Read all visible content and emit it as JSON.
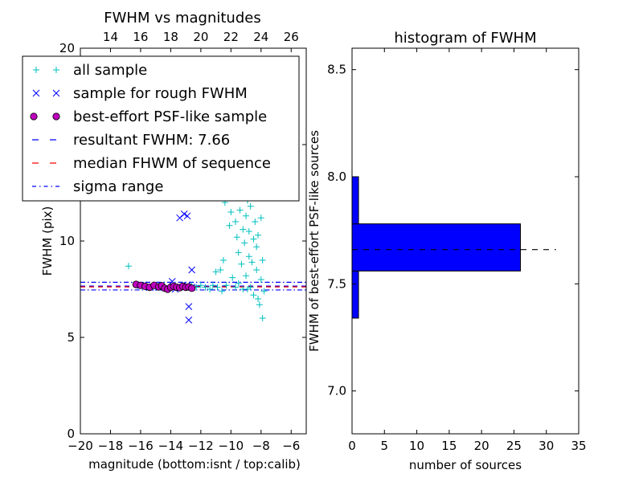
{
  "chart_data": [
    {
      "type": "scatter",
      "title": "FWHM vs magnitudes",
      "xlabel": "magnitude (bottom:isnt / top:calib)",
      "ylabel": "FWHM (pix)",
      "xlim": [
        -20,
        -5
      ],
      "ylim": [
        0,
        20
      ],
      "xticks": [
        -20,
        -18,
        -16,
        -14,
        -12,
        -10,
        -8,
        -6
      ],
      "yticks": [
        0,
        5,
        10,
        15,
        20
      ],
      "ytick_labels": [
        "0",
        "5",
        "10",
        "15",
        "20"
      ],
      "top_axis": {
        "offset": 32,
        "ticks": [
          14,
          16,
          18,
          20,
          22,
          24,
          26
        ]
      },
      "legend": {
        "placement": "top-left",
        "entries": [
          {
            "label": "all sample",
            "marker": "plus",
            "color": "#00bfbf"
          },
          {
            "label": "sample for rough FWHM",
            "marker": "x",
            "color": "#0000ff"
          },
          {
            "label": "best-effort PSF-like sample",
            "marker": "circle",
            "color": "#bf00bf"
          },
          {
            "label": "resultant FWHM: 7.66",
            "marker": "dashed-line",
            "color": "#0000ff"
          },
          {
            "label": "median FHWM of sequence",
            "marker": "dashed-line",
            "color": "#ff0000"
          },
          {
            "label": "sigma range",
            "marker": "dashdot-line",
            "color": "#0000ff"
          }
        ]
      },
      "series": [
        {
          "name": "all sample",
          "points": [
            [
              -16.8,
              8.7
            ],
            [
              -16.2,
              7.7
            ],
            [
              -15.6,
              7.6
            ],
            [
              -15.0,
              7.6
            ],
            [
              -14.6,
              7.7
            ],
            [
              -14.2,
              7.5
            ],
            [
              -13.9,
              7.6
            ],
            [
              -13.6,
              7.6
            ],
            [
              -13.2,
              7.7
            ],
            [
              -12.9,
              7.6
            ],
            [
              -12.6,
              7.7
            ],
            [
              -12.3,
              7.6
            ],
            [
              -12.0,
              7.7
            ],
            [
              -11.7,
              7.6
            ],
            [
              -11.4,
              7.5
            ],
            [
              -11.2,
              7.7
            ],
            [
              -11.0,
              8.4
            ],
            [
              -10.9,
              7.6
            ],
            [
              -10.7,
              8.5
            ],
            [
              -10.6,
              7.4
            ],
            [
              -10.5,
              9.0
            ],
            [
              -10.4,
              12.0
            ],
            [
              -10.3,
              7.7
            ],
            [
              -10.2,
              12.6
            ],
            [
              -10.1,
              10.8
            ],
            [
              -10.0,
              11.5
            ],
            [
              -9.9,
              8.1
            ],
            [
              -9.8,
              12.3
            ],
            [
              -9.7,
              11.0
            ],
            [
              -9.6,
              10.2
            ],
            [
              -9.6,
              13.0
            ],
            [
              -9.5,
              9.4
            ],
            [
              -9.4,
              11.6
            ],
            [
              -9.3,
              8.8
            ],
            [
              -9.3,
              12.8
            ],
            [
              -9.2,
              10.6
            ],
            [
              -9.1,
              9.9
            ],
            [
              -9.0,
              11.3
            ],
            [
              -9.0,
              8.2
            ],
            [
              -8.9,
              12.1
            ],
            [
              -8.8,
              9.2
            ],
            [
              -8.8,
              10.5
            ],
            [
              -8.7,
              7.6
            ],
            [
              -8.7,
              11.8
            ],
            [
              -8.6,
              8.9
            ],
            [
              -8.5,
              10.1
            ],
            [
              -8.5,
              7.2
            ],
            [
              -8.4,
              11.0
            ],
            [
              -8.3,
              8.5
            ],
            [
              -8.3,
              9.7
            ],
            [
              -8.2,
              7.0
            ],
            [
              -8.2,
              10.3
            ],
            [
              -8.1,
              6.7
            ],
            [
              -8.0,
              8.0
            ],
            [
              -8.0,
              11.2
            ],
            [
              -7.9,
              9.0
            ],
            [
              -7.9,
              6.0
            ],
            [
              -7.8,
              7.4
            ],
            [
              -9.7,
              7.6
            ],
            [
              -9.2,
              7.5
            ],
            [
              -9.5,
              7.8
            ],
            [
              -8.9,
              7.5
            ]
          ]
        },
        {
          "name": "sample for rough FWHM",
          "points": [
            [
              -16.0,
              7.7
            ],
            [
              -15.4,
              7.6
            ],
            [
              -14.8,
              7.6
            ],
            [
              -14.3,
              7.6
            ],
            [
              -13.9,
              7.9
            ],
            [
              -13.7,
              7.5
            ],
            [
              -13.4,
              11.2
            ],
            [
              -13.1,
              11.4
            ],
            [
              -12.9,
              11.3
            ],
            [
              -12.8,
              6.6
            ],
            [
              -12.8,
              5.9
            ],
            [
              -12.6,
              8.5
            ],
            [
              -12.9,
              7.7
            ],
            [
              -12.6,
              7.6
            ]
          ]
        },
        {
          "name": "best-effort PSF-like sample",
          "points": [
            [
              -16.3,
              7.75
            ],
            [
              -16.0,
              7.7
            ],
            [
              -15.7,
              7.65
            ],
            [
              -15.4,
              7.6
            ],
            [
              -15.1,
              7.7
            ],
            [
              -14.8,
              7.62
            ],
            [
              -14.6,
              7.68
            ],
            [
              -14.4,
              7.55
            ],
            [
              -14.2,
              7.5
            ],
            [
              -14.0,
              7.6
            ],
            [
              -13.8,
              7.65
            ],
            [
              -13.6,
              7.6
            ],
            [
              -13.4,
              7.58
            ],
            [
              -13.2,
              7.65
            ],
            [
              -13.0,
              7.6
            ],
            [
              -12.8,
              7.62
            ],
            [
              -12.6,
              7.55
            ]
          ]
        }
      ],
      "reference_lines": [
        {
          "name": "resultant FWHM: 7.66",
          "y": 7.66,
          "style": "dashed",
          "color": "#0000ff"
        },
        {
          "name": "median FHWM of sequence",
          "y": 7.62,
          "style": "dashed",
          "color": "#ff0000"
        },
        {
          "name": "sigma range",
          "y": 7.86,
          "style": "dashdot",
          "color": "#0000ff"
        },
        {
          "name": "sigma range",
          "y": 7.46,
          "style": "dashdot",
          "color": "#0000ff"
        }
      ]
    },
    {
      "type": "bar",
      "orientation": "horizontal",
      "title": "histogram of FWHM",
      "xlabel": "number of sources",
      "ylabel": "FWHM of best-effort PSF-like sources",
      "xlim": [
        0,
        35
      ],
      "ylim": [
        6.8,
        8.6
      ],
      "xticks": [
        0,
        5,
        10,
        15,
        20,
        25,
        30,
        35
      ],
      "yticks": [
        7.0,
        7.5,
        8.0,
        8.5
      ],
      "ytick_labels": [
        "7.0",
        "7.5",
        "8.0",
        "8.5"
      ],
      "bar_color": "#0000ff",
      "bins": [
        {
          "from": 7.34,
          "to": 7.56,
          "count": 1
        },
        {
          "from": 7.56,
          "to": 7.78,
          "count": 26
        },
        {
          "from": 7.78,
          "to": 8.0,
          "count": 1
        }
      ],
      "reference_line": {
        "y": 7.66,
        "from": 0,
        "to": 31.5,
        "style": "dashed",
        "color": "#000000"
      }
    }
  ]
}
